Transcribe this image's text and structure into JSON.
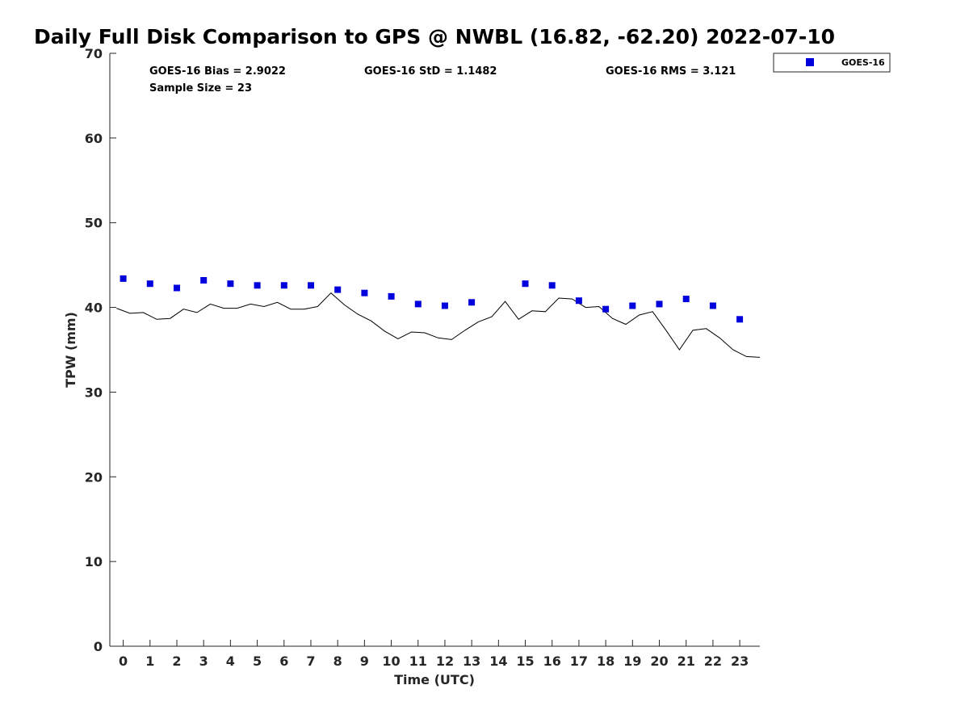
{
  "chart_data": {
    "type": "scatter",
    "title": "Daily Full Disk Comparison to GPS @ NWBL (16.82, -62.20) 2022-07-10",
    "xlabel": "Time (UTC)",
    "ylabel": "TPW (mm)",
    "xlim": [
      -0.5,
      23.75
    ],
    "ylim": [
      0,
      70
    ],
    "xticks": [
      0,
      1,
      2,
      3,
      4,
      5,
      6,
      7,
      8,
      9,
      10,
      11,
      12,
      13,
      14,
      15,
      16,
      17,
      18,
      19,
      20,
      21,
      22,
      23
    ],
    "yticks": [
      0,
      10,
      20,
      30,
      40,
      50,
      60,
      70
    ],
    "grid": false,
    "legend_position": "top-right (outside plot)",
    "series": [
      {
        "name": "GOES-16",
        "kind": "scatter",
        "marker": "square",
        "color": "#0000dd",
        "x": [
          0,
          1,
          2,
          3,
          4,
          5,
          6,
          7,
          8,
          9,
          10,
          11,
          12,
          13,
          15,
          16,
          17,
          18,
          19,
          20,
          21,
          22,
          23
        ],
        "y": [
          43.4,
          42.8,
          42.3,
          43.2,
          42.8,
          42.6,
          42.6,
          42.6,
          42.1,
          41.7,
          41.3,
          40.4,
          40.2,
          40.6,
          42.8,
          42.6,
          40.8,
          39.8,
          40.2,
          40.4,
          41.0,
          40.2,
          38.6
        ]
      },
      {
        "kind": "line",
        "color": "#000000",
        "x": [
          -0.25,
          0.25,
          0.75,
          1.25,
          1.75,
          2.25,
          2.75,
          3.25,
          3.75,
          4.25,
          4.75,
          5.25,
          5.75,
          6.25,
          6.75,
          7.25,
          7.75,
          8.25,
          8.75,
          9.25,
          9.75,
          10.25,
          10.75,
          11.25,
          11.75,
          12.25,
          12.75,
          13.25,
          13.75,
          14.25,
          14.75,
          15.25,
          15.75,
          16.25,
          16.75,
          17.25,
          17.75,
          18.25,
          18.75,
          19.25,
          19.75,
          20.25,
          20.75,
          21.25,
          21.75,
          22.25,
          22.75,
          23.25,
          23.75
        ],
        "y": [
          39.9,
          39.3,
          39.4,
          38.6,
          38.7,
          39.8,
          39.4,
          40.4,
          39.9,
          39.9,
          40.4,
          40.1,
          40.6,
          39.8,
          39.8,
          40.1,
          41.7,
          40.3,
          39.2,
          38.4,
          37.2,
          36.3,
          37.1,
          37.0,
          36.4,
          36.2,
          37.3,
          38.3,
          38.9,
          40.7,
          38.6,
          39.6,
          39.5,
          41.1,
          41.0,
          40.0,
          40.1,
          38.7,
          38.0,
          39.1,
          39.5,
          37.3,
          35.0,
          37.3,
          37.5,
          36.4,
          35.0,
          34.2,
          34.1
        ]
      }
    ],
    "annotations": [
      {
        "text": "GOES-16 Bias = 2.9022"
      },
      {
        "text": "GOES-16 StD = 1.1482"
      },
      {
        "text": "GOES-16 RMS = 3.121"
      },
      {
        "text": "Sample Size = 23"
      }
    ],
    "legend": [
      {
        "label": "GOES-16",
        "marker": "square",
        "color": "#0000dd"
      }
    ]
  }
}
